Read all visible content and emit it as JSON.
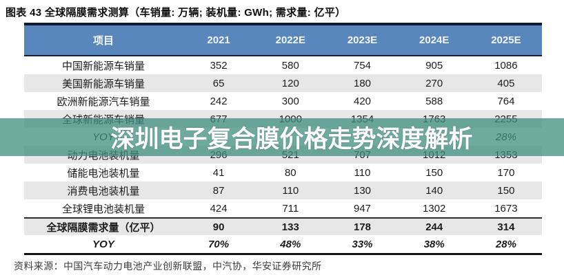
{
  "figure_title": "图表 43 全球隔膜需求测算（车销量: 万辆; 装机量: GWh; 需求量: 亿平）",
  "watermark": {
    "text": "深圳电子复合膜价格走势深度解析"
  },
  "source_note": "资料来源：中国汽车动力电池产业创新联盟，中汽协，华安证券研究所",
  "colors": {
    "header_bg": "#5886bd",
    "stripe": "#e7e7e7",
    "top_border": "#141830",
    "watermark_teal": "#3f8e7f"
  },
  "chart_data": {
    "type": "table",
    "title": "图表 43 全球隔膜需求测算（车销量: 万辆; 装机量: GWh; 需求量: 亿平）",
    "columns": [
      "项目",
      "2021",
      "2022E",
      "2023E",
      "2024E",
      "2025E"
    ],
    "rows": [
      {
        "label": "中国新能源车销量",
        "values": [
          "352",
          "580",
          "754",
          "905",
          "1086"
        ],
        "style": "normal"
      },
      {
        "label": "美国新能源车销量",
        "values": [
          "65",
          "120",
          "180",
          "270",
          "405"
        ],
        "style": "normal"
      },
      {
        "label": "欧洲新能源汽车销量",
        "values": [
          "242",
          "300",
          "420",
          "588",
          "764"
        ],
        "style": "normal"
      },
      {
        "label": "全球新能源车销量",
        "values": [
          "677",
          "1000",
          "1354",
          "1763",
          "2255"
        ],
        "style": "normal"
      },
      {
        "label": "YOY",
        "values": [
          "",
          "",
          "",
          "",
          "28%"
        ],
        "style": "yoy"
      },
      {
        "label": "动力电池装机量",
        "values": [
          "296",
          "521",
          "707",
          "1012",
          "1353"
        ],
        "style": "normal"
      },
      {
        "label": "储能电池装机量",
        "values": [
          "41",
          "80",
          "110",
          "150",
          "170"
        ],
        "style": "normal"
      },
      {
        "label": "消费电池装机量",
        "values": [
          "87",
          "110",
          "130",
          "140",
          "150"
        ],
        "style": "normal"
      },
      {
        "label": "全球锂电池装机量",
        "values": [
          "424",
          "711",
          "947",
          "1302",
          "1673"
        ],
        "style": "normal"
      },
      {
        "label": "全球隔膜需求量（亿平）",
        "values": [
          "90",
          "133",
          "178",
          "244",
          "314"
        ],
        "style": "emphasis"
      },
      {
        "label": "YOY",
        "values": [
          "70%",
          "48%",
          "33%",
          "38%",
          "28%"
        ],
        "style": "emphasis-yoy"
      }
    ]
  }
}
